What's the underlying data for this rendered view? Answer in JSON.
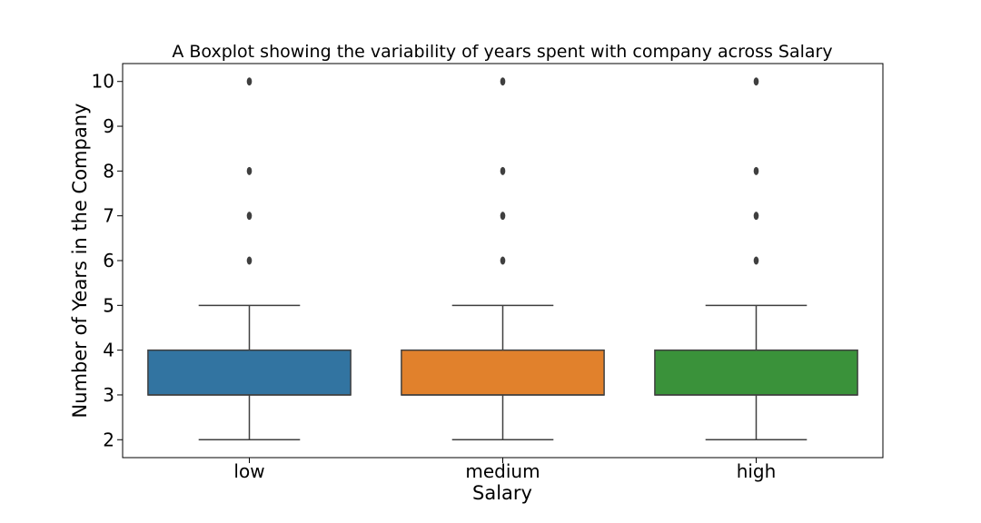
{
  "chart_data": {
    "type": "box",
    "title": "A Boxplot showing the variability of years spent with company across Salary",
    "xlabel": "Salary",
    "ylabel": "Number of Years in the Company",
    "categories": [
      "low",
      "medium",
      "high"
    ],
    "colors": [
      "#3274a1",
      "#e1812c",
      "#3a923a"
    ],
    "ylim": [
      1.6,
      10.4
    ],
    "yticks": [
      2,
      3,
      4,
      5,
      6,
      7,
      8,
      9,
      10
    ],
    "boxes": [
      {
        "category": "low",
        "whisker_low": 2,
        "q1": 3,
        "median": 3,
        "q3": 4,
        "whisker_high": 5,
        "outliers": [
          6,
          7,
          8,
          10
        ]
      },
      {
        "category": "medium",
        "whisker_low": 2,
        "q1": 3,
        "median": 3,
        "q3": 4,
        "whisker_high": 5,
        "outliers": [
          6,
          7,
          8,
          10
        ]
      },
      {
        "category": "high",
        "whisker_low": 2,
        "q1": 3,
        "median": 3,
        "q3": 4,
        "whisker_high": 5,
        "outliers": [
          6,
          7,
          8,
          10
        ]
      }
    ],
    "grid": false,
    "legend": "none"
  }
}
